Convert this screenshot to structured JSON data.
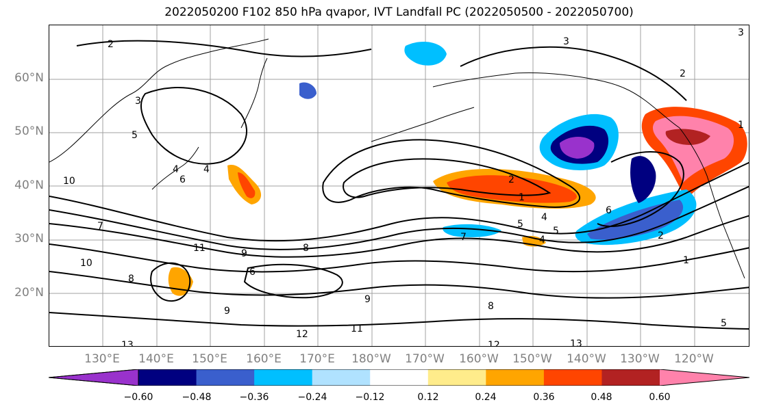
{
  "title": "2022050200 F102 850 hPa qvapor, IVT Landfall PC (2022050500 - 2022050700)",
  "lat_labels": [
    "60°N",
    "50°N",
    "40°N",
    "30°N",
    "20°N"
  ],
  "lon_labels": [
    "130°E",
    "140°E",
    "150°E",
    "160°E",
    "170°E",
    "180°W",
    "170°W",
    "160°W",
    "150°W",
    "140°W",
    "130°W",
    "120°W"
  ],
  "colorbar": {
    "colors": [
      "#9932cc",
      "#000080",
      "#3a5fcd",
      "#00bfff",
      "#b0e2ff",
      "#ffffff",
      "#ffec8b",
      "#ffa500",
      "#ff4500",
      "#b22222",
      "#ff82ab"
    ],
    "tick_labels": [
      "−0.60",
      "−0.48",
      "−0.36",
      "−0.24",
      "−0.12",
      "0.12",
      "0.24",
      "0.36",
      "0.48",
      "0.60"
    ]
  },
  "contour_labels": [
    "2",
    "3",
    "3",
    "2",
    "5",
    "4",
    "2",
    "1",
    "5",
    "4",
    "6",
    "5",
    "4",
    "7",
    "9",
    "8",
    "10",
    "11",
    "6",
    "8",
    "13",
    "12",
    "11",
    "13",
    "12",
    "1",
    "2",
    "3",
    "1",
    "5",
    "4",
    "6",
    "8",
    "9",
    "7",
    "9",
    "10"
  ]
}
